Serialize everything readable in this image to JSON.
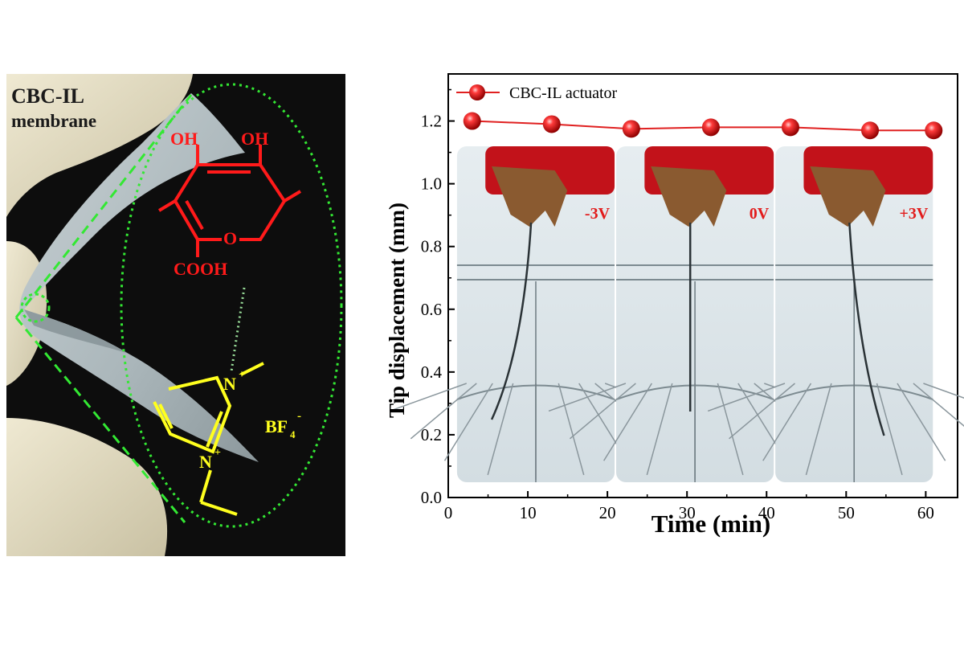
{
  "photo": {
    "label_line1": "CBC-IL",
    "label_line2": "membrane",
    "oh_left": "OH",
    "oh_right": "OH",
    "ring_oxygen": "O",
    "carboxyl": "COOH",
    "cation_top": "N",
    "cation_top_charge": "+",
    "cation_bottom": "N",
    "cation_bottom_charge": "+",
    "anion": "BF",
    "anion_sub": "4",
    "anion_charge": "-",
    "colors": {
      "background": "#0d0d0d",
      "membrane": "#b7c2c6",
      "glove": "#e2dcc4",
      "acid": "#ff1a1a",
      "ionic_liquid": "#ffff1e",
      "outline": "#33e833"
    }
  },
  "chart_data": {
    "type": "line",
    "xlabel": "Time (min)",
    "ylabel": "Tip displacement (mm)",
    "xlim": [
      0,
      64
    ],
    "ylim": [
      0,
      1.35
    ],
    "xticks": [
      0,
      10,
      20,
      30,
      40,
      50,
      60
    ],
    "yticks": [
      0.0,
      0.2,
      0.4,
      0.6,
      0.8,
      1.0,
      1.2
    ],
    "ytick_labels": [
      "0.0",
      "0.2",
      "0.4",
      "0.6",
      "0.8",
      "1.0",
      "1.2"
    ],
    "grid": false,
    "legend_position": "top-left",
    "series": [
      {
        "name": "CBC-IL actuator",
        "color": "#e02020",
        "x": [
          3,
          13,
          23,
          33,
          43,
          53,
          61
        ],
        "y": [
          1.2,
          1.19,
          1.175,
          1.18,
          1.18,
          1.17,
          1.17
        ]
      }
    ],
    "insets": [
      {
        "label": "-3V",
        "x_range": [
          1,
          21
        ],
        "bend": "left"
      },
      {
        "label": "0V",
        "x_range": [
          21,
          41
        ],
        "bend": "none"
      },
      {
        "label": "+3V",
        "x_range": [
          41,
          61
        ],
        "bend": "right"
      }
    ]
  }
}
